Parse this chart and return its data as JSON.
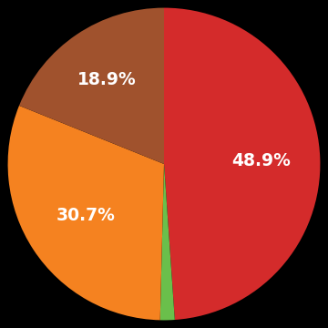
{
  "slices": [
    48.9,
    1.5,
    30.7,
    18.9
  ],
  "colors": [
    "#d42b2b",
    "#6abf4b",
    "#f58220",
    "#a0522d"
  ],
  "labels": [
    "48.9%",
    "",
    "30.7%",
    "18.9%"
  ],
  "startangle": 90,
  "background_color": "#000000",
  "text_color": "#ffffff",
  "label_fontsize": 13.5,
  "label_fontweight": "bold",
  "label_radii": [
    0.62,
    0.0,
    0.6,
    0.65
  ]
}
